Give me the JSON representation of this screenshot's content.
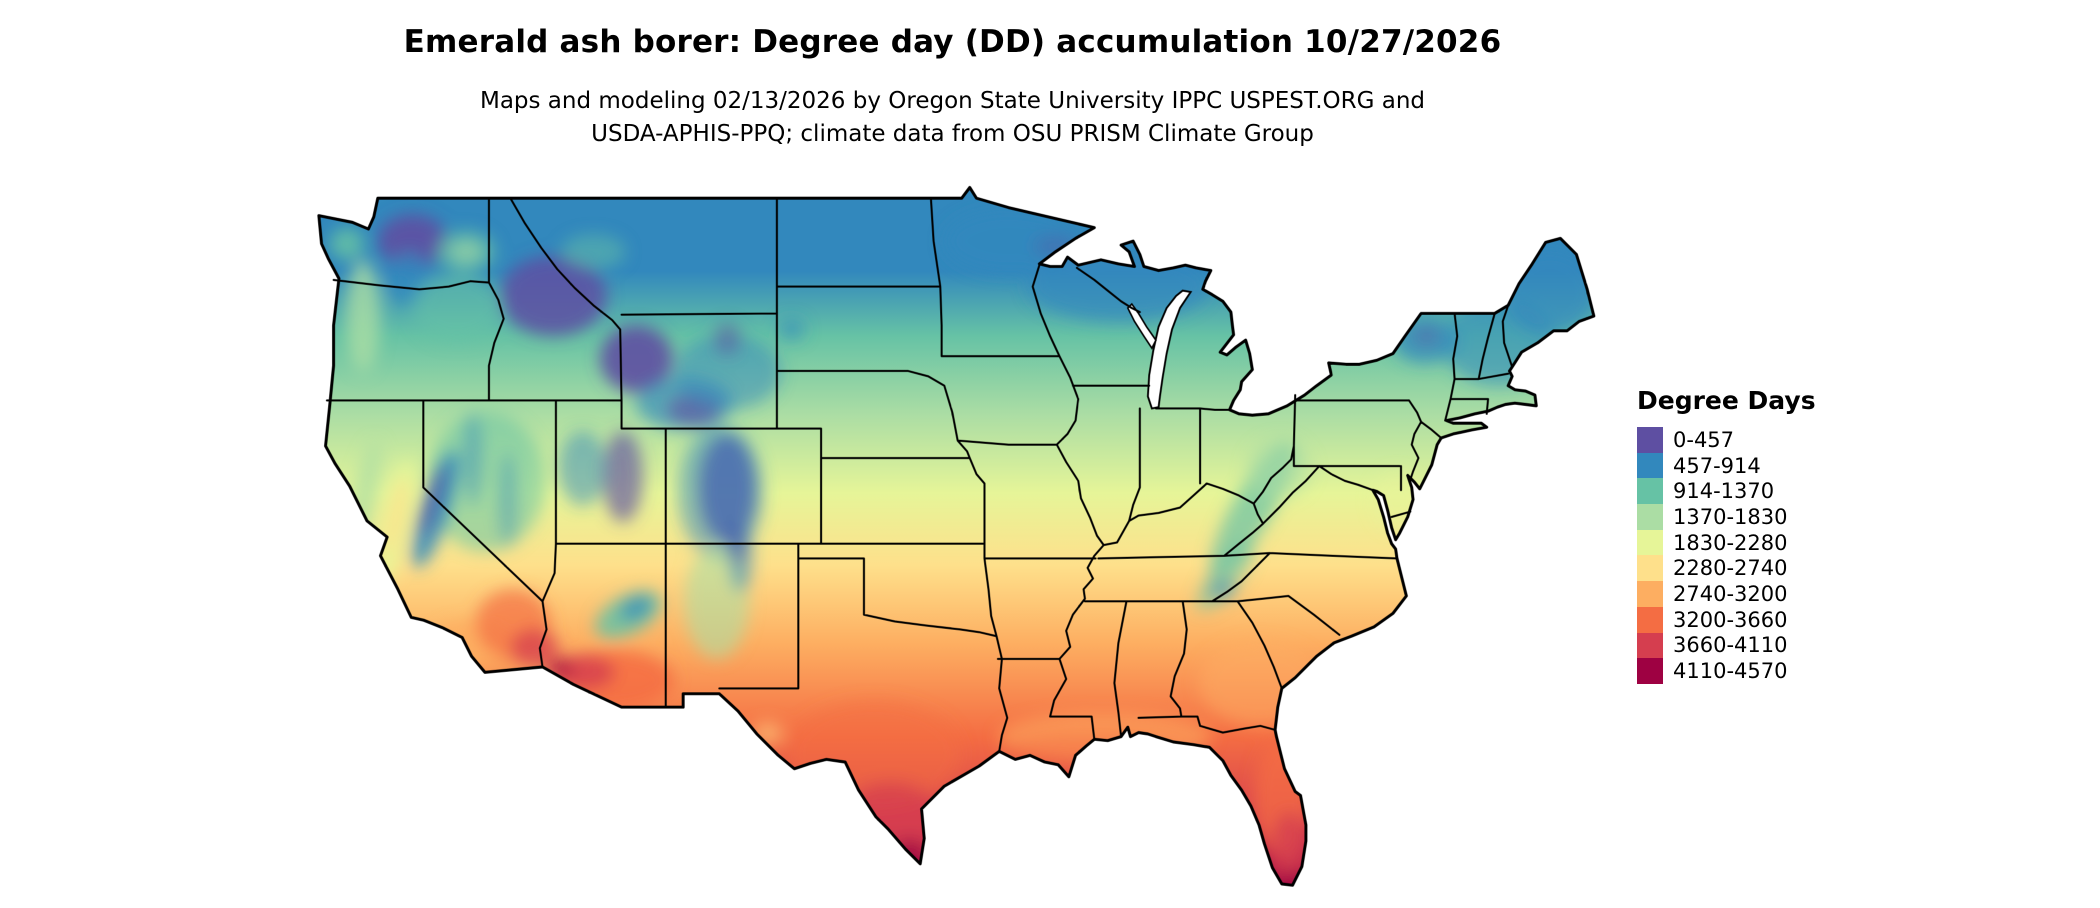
{
  "header": {
    "title": "Emerald ash borer: Degree day (DD) accumulation 10/27/2026",
    "subtitle_line1": "Maps and modeling 02/13/2026 by Oregon State University IPPC USPEST.ORG and",
    "subtitle_line2": "USDA-APHIS-PPQ; climate data from OSU PRISM Climate Group"
  },
  "legend": {
    "title": "Degree Days",
    "entries": [
      {
        "label": "0-457",
        "color": "#5e4fa2"
      },
      {
        "label": "457-914",
        "color": "#3288bd"
      },
      {
        "label": "914-1370",
        "color": "#66c2a5"
      },
      {
        "label": "1370-1830",
        "color": "#abdda4"
      },
      {
        "label": "1830-2280",
        "color": "#e6f598"
      },
      {
        "label": "2280-2740",
        "color": "#fee08b"
      },
      {
        "label": "2740-3200",
        "color": "#fdae61"
      },
      {
        "label": "3200-3660",
        "color": "#f46d43"
      },
      {
        "label": "3660-4110",
        "color": "#d53e4f"
      },
      {
        "label": "4110-4570",
        "color": "#9e0142"
      }
    ]
  },
  "map_colors": {
    "state_border": "#000000",
    "background": "#ffffff"
  }
}
